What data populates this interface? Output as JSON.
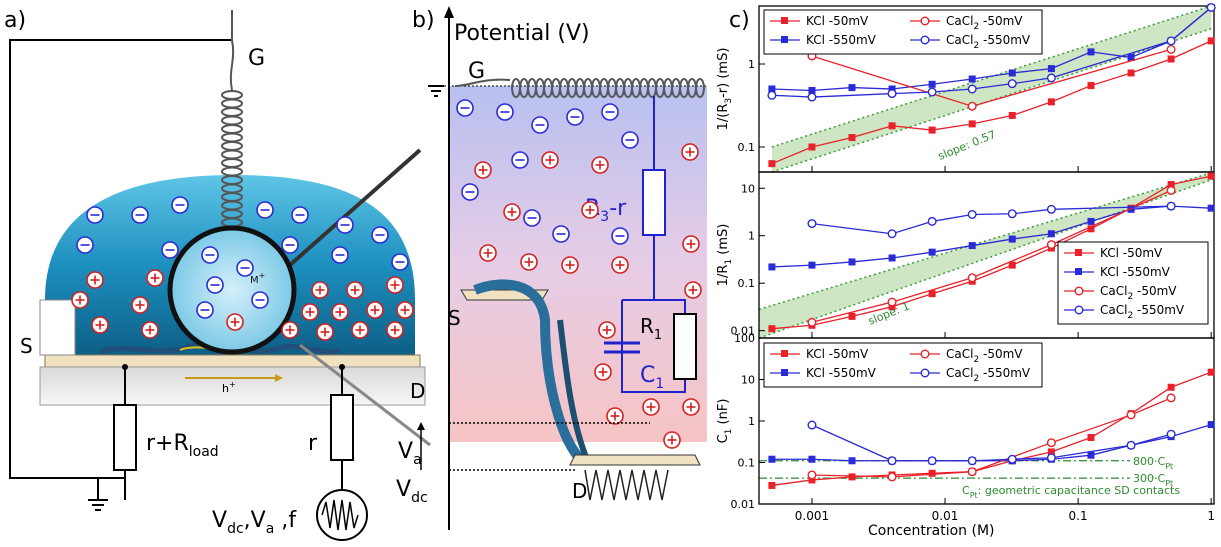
{
  "panel_a": {
    "label": "a)",
    "gate": "G",
    "source": "S",
    "drain": "D",
    "ion_label": "M",
    "ion_sup": "+",
    "hole_label": "h",
    "hole_sup": "+",
    "load_res_main": "r+R",
    "load_res_sub": "load",
    "res_r": "r",
    "src_vdc": "V",
    "src_vdc_sub": "dc",
    "src_va": "V",
    "src_va_sub": "a",
    "src_f": "f",
    "src_comma1": ",",
    "src_comma2": " ,"
  },
  "panel_b": {
    "label": "b)",
    "axis_title": "Potential (V)",
    "gate": "G",
    "source": "S",
    "drain": "D",
    "r3_main": "R",
    "r3_sub": "3",
    "r3_suffix": "-r",
    "r1_main": "R",
    "r1_sub": "1",
    "c1_main": "C",
    "c1_sub": "1",
    "va_main": "V",
    "va_sub": "a",
    "vdc_main": "V",
    "vdc_sub": "dc"
  },
  "panel_c": {
    "label": "c)",
    "xlabel": "Concentration (M)",
    "x_ticks": [
      "0.001",
      "0.01",
      "0.1",
      "1"
    ]
  },
  "colors": {
    "kcl": "#e8212a",
    "cacl2": "#2a2ad6",
    "slope_band": "#cfe6c4",
    "slope_line": "#3a9a3a",
    "annotation": "#2e8b2e"
  },
  "chart_data": [
    {
      "type": "line",
      "scale": "log-log",
      "ylabel_main": "1/(R",
      "ylabel_sub": "3",
      "ylabel_suffix": "-r) (mS)",
      "xlim": [
        0.0004,
        1.05
      ],
      "ylim": [
        0.05,
        5
      ],
      "y_ticks": [
        "0.1",
        "1"
      ],
      "legend": "top-left",
      "annotation": "slope: 0.57",
      "x": [
        0.0005,
        0.001,
        0.002,
        0.004,
        0.008,
        0.016,
        0.032,
        0.063,
        0.125,
        0.25,
        0.5,
        1.0
      ],
      "series": [
        {
          "name": "KCl -50mV",
          "marker": "filled-square",
          "color": "#e8212a",
          "values": [
            0.063,
            0.1,
            0.13,
            0.18,
            0.16,
            0.19,
            0.24,
            0.35,
            0.55,
            0.78,
            1.15,
            1.9
          ]
        },
        {
          "name": "KCl -550mV",
          "marker": "filled-square",
          "color": "#2a2ad6",
          "values": [
            0.5,
            0.48,
            0.52,
            0.5,
            0.57,
            0.66,
            0.78,
            0.88,
            1.4,
            1.2,
            1.9,
            4.8
          ]
        },
        {
          "name": "CaCl2 -50mV",
          "legend_main": "CaCl",
          "legend_sub": "2",
          "legend_suffix": " -50mV",
          "marker": "open-circle",
          "color": "#e8212a",
          "x": [
            0.001,
            0.016,
            0.5
          ],
          "values": [
            1.25,
            0.31,
            1.5
          ]
        },
        {
          "name": "CaCl2 -550mV",
          "legend_main": "CaCl",
          "legend_sub": "2",
          "legend_suffix": " -550mV",
          "marker": "open-circle",
          "color": "#2a2ad6",
          "x": [
            0.0005,
            0.001,
            0.004,
            0.008,
            0.016,
            0.032,
            0.063,
            0.5,
            1.0
          ],
          "values": [
            0.42,
            0.4,
            0.44,
            0.46,
            0.5,
            0.58,
            0.68,
            1.9,
            4.8
          ]
        }
      ]
    },
    {
      "type": "line",
      "scale": "log-log",
      "ylabel_main": "1/R",
      "ylabel_sub": "1",
      "ylabel_suffix": " (mS)",
      "xlim": [
        0.0004,
        1.05
      ],
      "ylim": [
        0.007,
        22
      ],
      "y_ticks": [
        "0.01",
        "0.1",
        "1",
        "10"
      ],
      "legend": "bottom-right",
      "annotation": "slope: 1",
      "x": [
        0.0005,
        0.001,
        0.002,
        0.004,
        0.008,
        0.016,
        0.032,
        0.063,
        0.125,
        0.25,
        0.5,
        1.0
      ],
      "series": [
        {
          "name": "KCl -50mV",
          "marker": "filled-square",
          "color": "#e8212a",
          "values": [
            0.011,
            0.013,
            0.02,
            0.032,
            0.06,
            0.11,
            0.24,
            0.55,
            1.4,
            3.8,
            12,
            18
          ]
        },
        {
          "name": "KCl -550mV",
          "marker": "filled-square",
          "color": "#2a2ad6",
          "values": [
            0.22,
            0.24,
            0.28,
            0.34,
            0.45,
            0.62,
            0.85,
            1.1,
            2.0,
            3.6,
            4.2,
            3.8
          ]
        },
        {
          "name": "CaCl2 -50mV",
          "legend_main": "CaCl",
          "legend_sub": "2",
          "legend_suffix": " -50mV",
          "marker": "open-circle",
          "color": "#e8212a",
          "x": [
            0.001,
            0.004,
            0.016,
            0.063,
            0.5
          ],
          "values": [
            0.015,
            0.04,
            0.13,
            0.65,
            9
          ]
        },
        {
          "name": "CaCl2 -550mV",
          "legend_main": "CaCl",
          "legend_sub": "2",
          "legend_suffix": " -550mV",
          "marker": "open-circle",
          "color": "#2a2ad6",
          "x": [
            0.001,
            0.004,
            0.008,
            0.016,
            0.032,
            0.063,
            0.5
          ],
          "values": [
            1.8,
            1.1,
            2.0,
            2.8,
            2.9,
            3.6,
            4.2
          ]
        }
      ]
    },
    {
      "type": "line",
      "scale": "log-log",
      "ylabel_main": "C",
      "ylabel_sub": "1",
      "ylabel_suffix": " (nF)",
      "xlim": [
        0.0004,
        1.05
      ],
      "ylim": [
        0.01,
        100
      ],
      "y_ticks": [
        "0.01",
        "0.1",
        "1",
        "10",
        "100"
      ],
      "legend": "top",
      "annotations": [
        {
          "main": "800·C",
          "sub": "Pt",
          "value": 0.11
        },
        {
          "main": "300·C",
          "sub": "Pt",
          "value": 0.042
        }
      ],
      "footnote_main": "C",
      "footnote_sub": "Pt",
      "footnote_suffix": ": geometric capacitance SD contacts",
      "x": [
        0.0005,
        0.001,
        0.002,
        0.004,
        0.008,
        0.016,
        0.032,
        0.063,
        0.125,
        0.25,
        0.5,
        1.0
      ],
      "series": [
        {
          "name": "KCl -50mV",
          "marker": "filled-square",
          "color": "#e8212a",
          "values": [
            0.028,
            0.038,
            0.045,
            0.05,
            0.055,
            0.06,
            0.11,
            0.18,
            0.4,
            1.5,
            6.5,
            15
          ]
        },
        {
          "name": "KCl -550mV",
          "marker": "filled-square",
          "color": "#2a2ad6",
          "values": [
            0.12,
            0.12,
            0.11,
            0.11,
            0.11,
            0.11,
            0.11,
            0.12,
            0.15,
            0.26,
            0.42,
            0.82
          ]
        },
        {
          "name": "CaCl2 -50mV",
          "legend_main": "CaCl",
          "legend_sub": "2",
          "legend_suffix": " -50mV",
          "marker": "open-circle",
          "color": "#e8212a",
          "x": [
            0.001,
            0.004,
            0.016,
            0.063,
            0.25,
            0.5
          ],
          "values": [
            0.05,
            0.045,
            0.06,
            0.3,
            1.4,
            3.6
          ]
        },
        {
          "name": "CaCl2 -550mV",
          "legend_main": "CaCl",
          "legend_sub": "2",
          "legend_suffix": " -550mV",
          "marker": "open-circle",
          "color": "#2a2ad6",
          "x": [
            0.001,
            0.004,
            0.008,
            0.016,
            0.032,
            0.063,
            0.25,
            0.5
          ],
          "values": [
            0.8,
            0.11,
            0.11,
            0.11,
            0.12,
            0.13,
            0.26,
            0.48
          ]
        }
      ]
    }
  ]
}
